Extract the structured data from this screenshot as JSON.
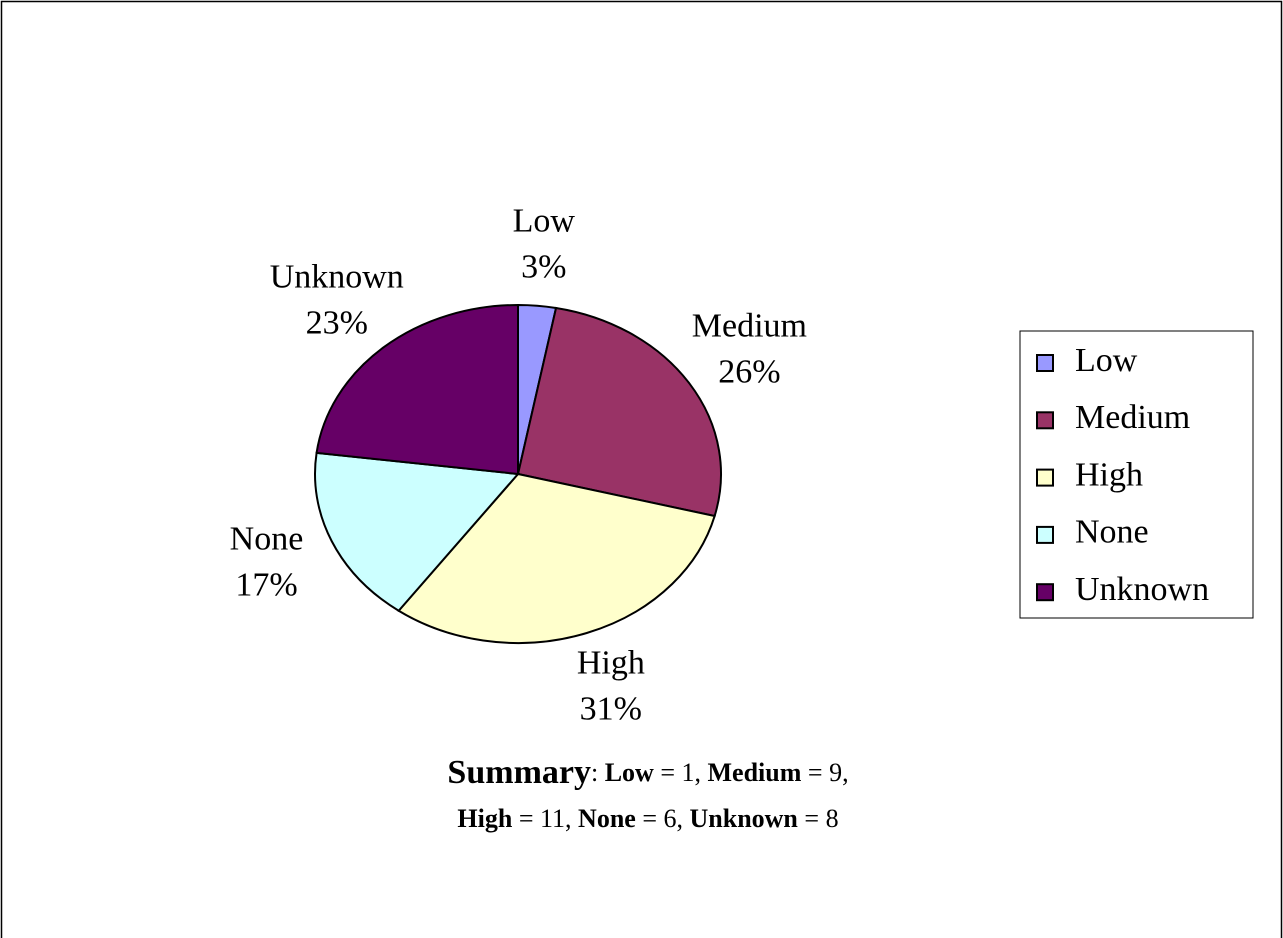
{
  "chart_data": {
    "type": "pie",
    "categories": [
      "Low",
      "Medium",
      "High",
      "None",
      "Unknown"
    ],
    "values": [
      3,
      26,
      31,
      17,
      23
    ],
    "value_labels": [
      "3%",
      "26%",
      "31%",
      "17%",
      "23%"
    ],
    "colors": [
      "#9999ff",
      "#993366",
      "#ffffcc",
      "#ccffff",
      "#660066"
    ],
    "legend": "right"
  },
  "summary": {
    "lines": [
      [
        {
          "text": "Summary",
          "bold": true
        },
        {
          "text": ": "
        },
        {
          "text": "Low",
          "bold": true
        },
        {
          "text": " = 1, "
        },
        {
          "text": "Medium",
          "bold": true
        },
        {
          "text": " = 9,"
        }
      ],
      [
        {
          "text": "High",
          "bold": true
        },
        {
          "text": " = 11, "
        },
        {
          "text": "None",
          "bold": true
        },
        {
          "text": " = 6, "
        },
        {
          "text": "Unknown",
          "bold": true
        },
        {
          "text": " = 8"
        }
      ]
    ]
  }
}
